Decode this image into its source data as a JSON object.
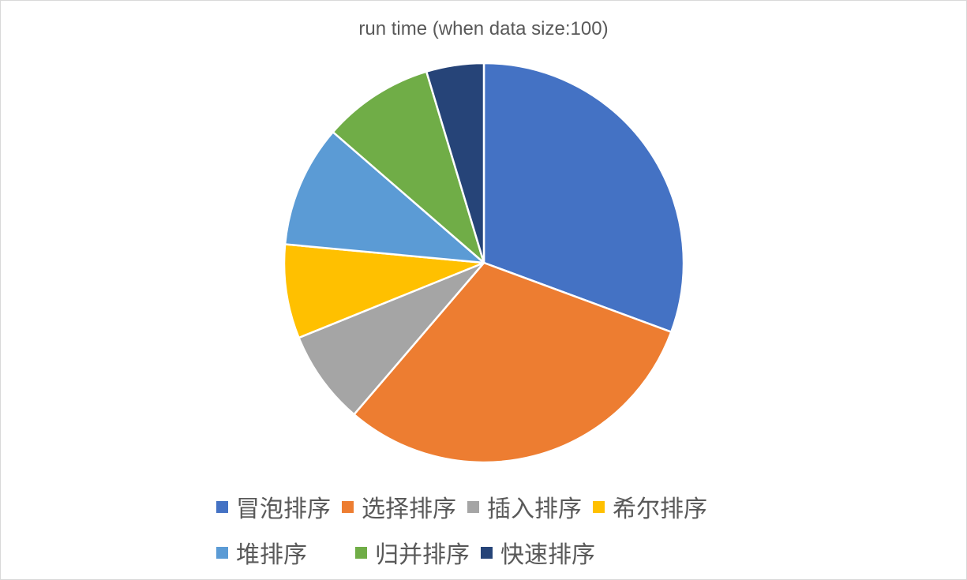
{
  "chart_data": {
    "type": "pie",
    "title": "run time (when data size:100)",
    "categories": [
      "冒泡排序",
      "选择排序",
      "插入排序",
      "希尔排序",
      "堆排序",
      "归并排序",
      "快速排序"
    ],
    "values": [
      31.0,
      31.0,
      7.7,
      7.7,
      10.0,
      9.1,
      4.7
    ],
    "colors": [
      "#4472C4",
      "#ED7D31",
      "#A5A5A5",
      "#FFC000",
      "#5B9BD5",
      "#70AD47",
      "#264478"
    ],
    "start_angle_deg": 0,
    "direction": "clockwise",
    "legend_position": "bottom",
    "legend": [
      [
        "冒泡排序",
        "选择排序",
        "插入排序",
        "希尔排序"
      ],
      [
        "堆排序",
        "归并排序",
        "快速排序"
      ]
    ]
  }
}
